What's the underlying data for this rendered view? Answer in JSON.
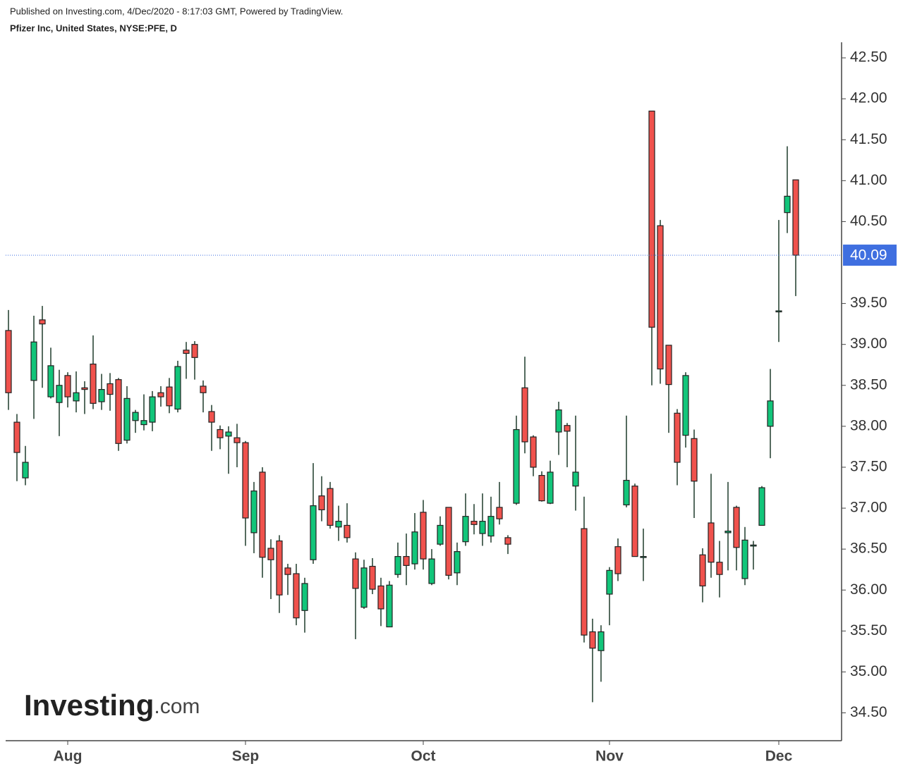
{
  "chart_data": {
    "type": "candlestick",
    "subtitle": "Published on Investing.com, 4/Dec/2020 - 8:17:03 GMT, Powered by TradingView.",
    "title": "Pfizer Inc, United States, NYSE:PFE, D",
    "watermark": [
      "Investing",
      ".com"
    ],
    "categories": [
      null,
      null,
      null,
      null,
      null,
      null,
      null,
      "Aug",
      null,
      null,
      null,
      null,
      null,
      null,
      null,
      null,
      null,
      null,
      null,
      null,
      null,
      null,
      null,
      null,
      null,
      null,
      null,
      null,
      "Sep",
      null,
      null,
      null,
      null,
      null,
      null,
      null,
      null,
      null,
      null,
      null,
      null,
      null,
      null,
      null,
      null,
      null,
      null,
      null,
      null,
      "Oct",
      null,
      null,
      null,
      null,
      null,
      null,
      null,
      null,
      null,
      null,
      null,
      null,
      null,
      null,
      null,
      null,
      null,
      null,
      null,
      null,
      null,
      "Nov",
      null,
      null,
      null,
      null,
      null,
      null,
      null,
      null,
      null,
      null,
      null,
      null,
      null,
      null,
      null,
      null,
      null,
      null,
      null,
      "Dec",
      null,
      null
    ],
    "open": [
      39.17,
      38.05,
      37.37,
      38.56,
      39.3,
      38.36,
      38.29,
      38.62,
      38.31,
      38.47,
      38.76,
      38.3,
      38.52,
      38.57,
      37.83,
      38.07,
      38.02,
      38.05,
      38.41,
      38.48,
      38.21,
      38.93,
      39.0,
      38.49,
      38.18,
      37.96,
      37.88,
      37.86,
      37.8,
      36.7,
      37.44,
      36.51,
      36.6,
      36.27,
      36.2,
      35.75,
      36.37,
      37.15,
      37.24,
      36.77,
      36.79,
      36.38,
      35.79,
      36.29,
      36.05,
      35.55,
      36.19,
      36.41,
      36.32,
      36.95,
      36.08,
      36.56,
      37.01,
      36.21,
      36.59,
      36.84,
      36.69,
      36.66,
      37.01,
      36.64,
      37.06,
      38.47,
      37.87,
      37.4,
      37.06,
      37.93,
      38.01,
      37.27,
      36.75,
      35.49,
      35.26,
      35.95,
      36.53,
      37.04,
      37.27,
      36.41,
      41.85,
      40.45,
      38.99,
      38.16,
      37.89,
      37.85,
      36.43,
      36.82,
      36.34,
      36.7,
      37.01,
      36.14,
      36.55,
      36.79,
      38.0,
      39.41,
      40.61,
      41.01
    ],
    "high": [
      39.42,
      38.15,
      37.76,
      39.35,
      39.47,
      38.96,
      38.69,
      38.66,
      38.67,
      38.55,
      39.11,
      38.64,
      38.65,
      38.59,
      38.49,
      38.2,
      38.39,
      38.43,
      38.49,
      38.59,
      38.8,
      39.03,
      39.04,
      38.56,
      38.26,
      38.01,
      38.0,
      38.03,
      37.82,
      37.32,
      37.5,
      36.62,
      36.67,
      36.32,
      36.32,
      36.15,
      37.55,
      37.39,
      37.32,
      37.03,
      37.06,
      36.46,
      36.37,
      36.39,
      36.15,
      36.11,
      36.58,
      36.69,
      36.94,
      37.1,
      36.5,
      36.9,
      37.01,
      36.58,
      37.18,
      37.05,
      37.18,
      37.14,
      37.32,
      36.67,
      38.13,
      38.85,
      37.89,
      37.45,
      37.58,
      38.3,
      38.04,
      38.13,
      37.14,
      35.65,
      35.57,
      36.28,
      36.63,
      38.13,
      37.3,
      36.75,
      41.85,
      40.52,
      38.99,
      38.21,
      38.66,
      37.96,
      36.51,
      37.42,
      36.6,
      37.32,
      37.03,
      36.77,
      36.6,
      37.27,
      38.7,
      40.52,
      41.42,
      41.01
    ],
    "low": [
      38.2,
      37.33,
      37.28,
      38.09,
      38.47,
      38.34,
      37.88,
      38.23,
      38.17,
      38.15,
      38.21,
      38.2,
      38.19,
      37.7,
      37.79,
      37.92,
      37.95,
      37.94,
      38.24,
      38.16,
      38.17,
      38.58,
      38.57,
      38.17,
      37.7,
      37.72,
      37.42,
      37.5,
      36.54,
      36.45,
      36.15,
      35.89,
      35.72,
      35.94,
      35.57,
      35.48,
      36.32,
      36.84,
      36.75,
      36.6,
      36.58,
      35.4,
      35.77,
      35.95,
      35.56,
      35.55,
      36.15,
      36.06,
      36.25,
      36.25,
      36.06,
      36.54,
      36.13,
      36.06,
      36.54,
      36.68,
      36.54,
      36.58,
      36.8,
      36.44,
      37.04,
      37.67,
      37.39,
      37.08,
      37.05,
      37.65,
      37.5,
      36.97,
      35.36,
      34.63,
      34.88,
      35.57,
      36.11,
      37.01,
      36.41,
      36.11,
      38.5,
      38.52,
      37.92,
      37.28,
      37.74,
      36.88,
      35.85,
      36.15,
      35.91,
      36.24,
      36.24,
      36.06,
      36.25,
      36.79,
      37.61,
      39.03,
      40.36,
      39.59
    ],
    "close": [
      38.41,
      37.68,
      37.56,
      39.03,
      39.25,
      38.74,
      38.5,
      38.36,
      38.41,
      38.45,
      38.28,
      38.45,
      38.39,
      37.79,
      38.34,
      38.17,
      38.07,
      38.36,
      38.36,
      38.25,
      38.73,
      38.89,
      38.84,
      38.41,
      38.05,
      37.86,
      37.93,
      37.8,
      36.88,
      37.21,
      36.4,
      36.37,
      35.94,
      36.19,
      35.66,
      36.08,
      37.03,
      36.98,
      36.79,
      36.84,
      36.64,
      36.02,
      36.27,
      36.01,
      35.77,
      36.06,
      36.41,
      36.3,
      36.71,
      36.38,
      36.38,
      36.79,
      36.18,
      36.47,
      36.9,
      36.8,
      36.84,
      36.9,
      36.87,
      36.56,
      37.96,
      37.81,
      37.5,
      37.09,
      37.44,
      38.2,
      37.94,
      37.44,
      35.45,
      35.29,
      35.49,
      36.24,
      36.2,
      37.34,
      36.41,
      36.41,
      39.21,
      38.7,
      38.51,
      37.56,
      38.62,
      37.33,
      36.05,
      36.34,
      36.19,
      36.72,
      36.52,
      36.61,
      36.55,
      37.25,
      38.31,
      39.41,
      40.81,
      40.09
    ],
    "up_color": "#12c57a",
    "down_color": "#f0524d",
    "last_value": 40.09,
    "last_color": "#3f6fe0",
    "ylim": [
      34.16,
      42.69
    ],
    "yticks": [
      {
        "value": 34.5,
        "label": "34.50"
      },
      {
        "value": 35,
        "label": "35.00"
      },
      {
        "value": 35.5,
        "label": "35.50"
      },
      {
        "value": 36,
        "label": "36.00"
      },
      {
        "value": 36.5,
        "label": "36.50"
      },
      {
        "value": 37,
        "label": "37.00"
      },
      {
        "value": 37.5,
        "label": "37.50"
      },
      {
        "value": 38,
        "label": "38.00"
      },
      {
        "value": 38.5,
        "label": "38.50"
      },
      {
        "value": 39,
        "label": "39.00"
      },
      {
        "value": 39.5,
        "label": "39.50"
      },
      {
        "value": 40.5,
        "label": "40.50"
      },
      {
        "value": 41,
        "label": "41.00"
      },
      {
        "value": 41.5,
        "label": "41.50"
      },
      {
        "value": 42,
        "label": "42.00"
      },
      {
        "value": 42.5,
        "label": "42.50"
      }
    ]
  }
}
